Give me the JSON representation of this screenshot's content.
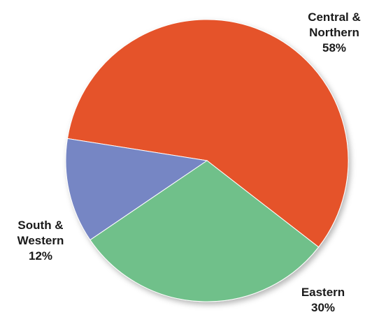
{
  "chart_data": {
    "type": "pie",
    "slices": [
      {
        "label_lines": [
          "Central &",
          "Northern",
          "58%"
        ],
        "name": "Central & Northern",
        "value": 58,
        "color": "#e5532a"
      },
      {
        "label_lines": [
          "Eastern",
          "30%"
        ],
        "name": "Eastern",
        "value": 30,
        "color": "#70c08a"
      },
      {
        "label_lines": [
          "South &",
          "Western",
          "12%"
        ],
        "name": "South & Western",
        "value": 12,
        "color": "#7686c4"
      }
    ],
    "title": "",
    "legend": "none"
  }
}
